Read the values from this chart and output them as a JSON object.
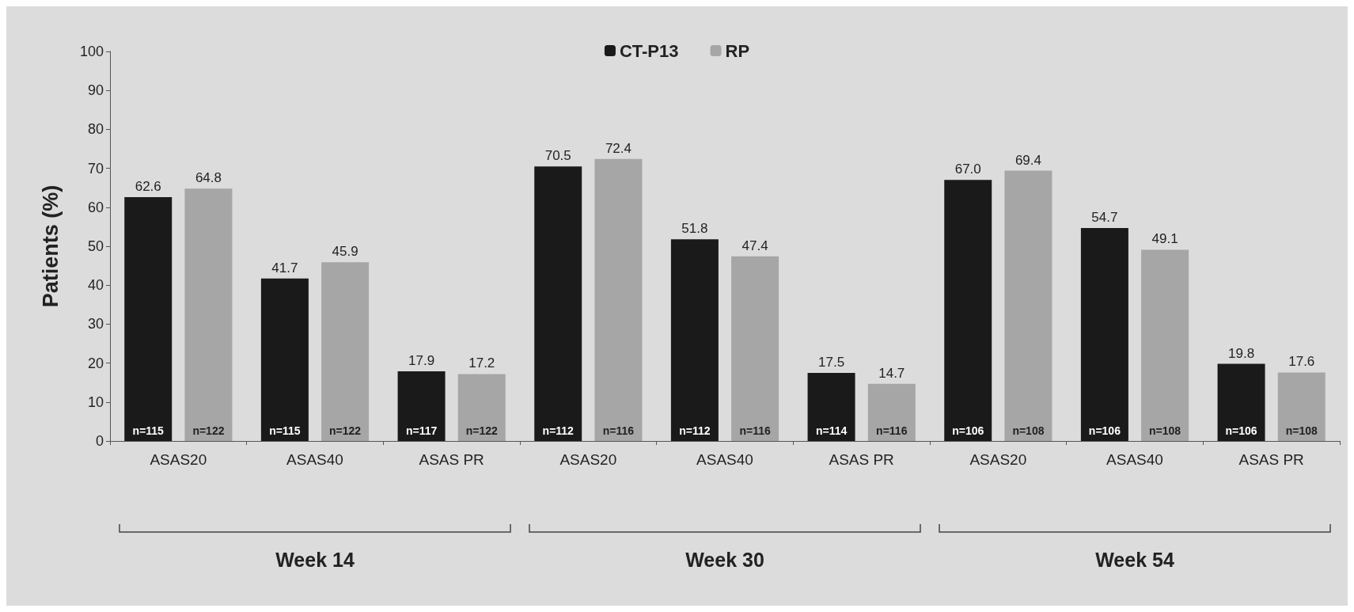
{
  "chart_data": {
    "type": "bar",
    "ylabel": "Patients (%)",
    "categories": [
      "ASAS20",
      "ASAS40",
      "ASAS PR",
      "ASAS20",
      "ASAS40",
      "ASAS PR",
      "ASAS20",
      "ASAS40",
      "ASAS PR"
    ],
    "series": [
      {
        "name": "CT-P13",
        "color": "#1a1a1a",
        "values": [
          62.6,
          41.7,
          17.9,
          70.5,
          51.8,
          17.5,
          67.0,
          54.7,
          19.8
        ],
        "value_labels": [
          "62.6",
          "41.7",
          "17.9",
          "70.5",
          "51.8",
          "17.5",
          "67.0",
          "54.7",
          "19.8"
        ]
      },
      {
        "name": "RP",
        "color": "#a6a6a6",
        "values": [
          64.8,
          45.9,
          17.2,
          72.4,
          47.4,
          14.7,
          69.4,
          49.1,
          17.6
        ],
        "value_labels": [
          "64.8",
          "45.9",
          "17.2",
          "72.4",
          "47.4",
          "14.7",
          "69.4",
          "49.1",
          "17.6"
        ]
      }
    ],
    "ylim": [
      0,
      100
    ],
    "yticks": [
      0,
      10,
      20,
      30,
      40,
      50,
      60,
      70,
      80,
      90,
      100
    ],
    "legend": "top",
    "grid": false,
    "annotations": [
      "n=115",
      "n=122",
      "n=115",
      "n=122",
      "n=117",
      "n=122",
      "n=112",
      "n=116",
      "n=112",
      "n=116",
      "n=114",
      "n=116",
      "n=106",
      "n=108",
      "n=106",
      "n=108",
      "n=106",
      "n=108",
      "Week 14",
      "Week 30",
      "Week 54"
    ]
  }
}
